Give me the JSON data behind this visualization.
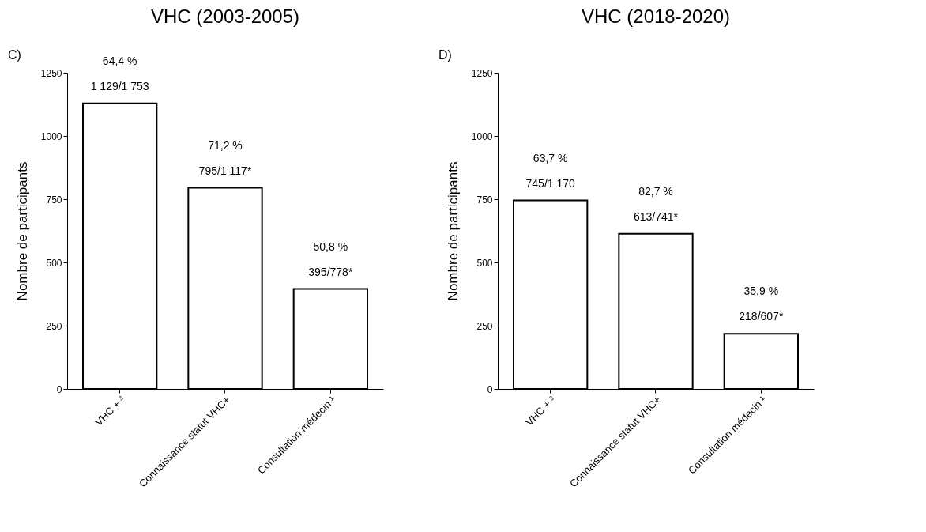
{
  "chart_data": [
    {
      "type": "bar",
      "title": "VHC (2003-2005)",
      "ylabel": "Nombre de participants",
      "categories": [
        "VHC + ³",
        "Connaissance statut VHC+",
        "Consultation médecin ¹"
      ],
      "values": [
        1129,
        795,
        395
      ],
      "color": "#ffffff",
      "ylim": [
        0,
        1250
      ],
      "yticks": [
        0,
        250,
        500,
        750,
        1000,
        1250
      ],
      "grid": false,
      "value_labels": [
        "64,4 %\n1 129/1 753",
        "71,2 %\n795/1 117*",
        "50,8 %\n395/778*"
      ],
      "annotations": [
        "C)"
      ]
    },
    {
      "type": "bar",
      "title": "VHC (2018-2020)",
      "ylabel": "Nombre de participants",
      "categories": [
        "VHC + ³",
        "Connaissance statut VHC+",
        "Consultation médecin ¹"
      ],
      "values": [
        745,
        613,
        218
      ],
      "color": "#ffffff",
      "ylim": [
        0,
        1250
      ],
      "yticks": [
        0,
        250,
        500,
        750,
        1000,
        1250
      ],
      "grid": false,
      "value_labels": [
        "63,7 %\n745/1 170",
        "82,7 %\n613/741*",
        "35,9 %\n218/607*"
      ],
      "annotations": [
        "D)"
      ]
    }
  ]
}
